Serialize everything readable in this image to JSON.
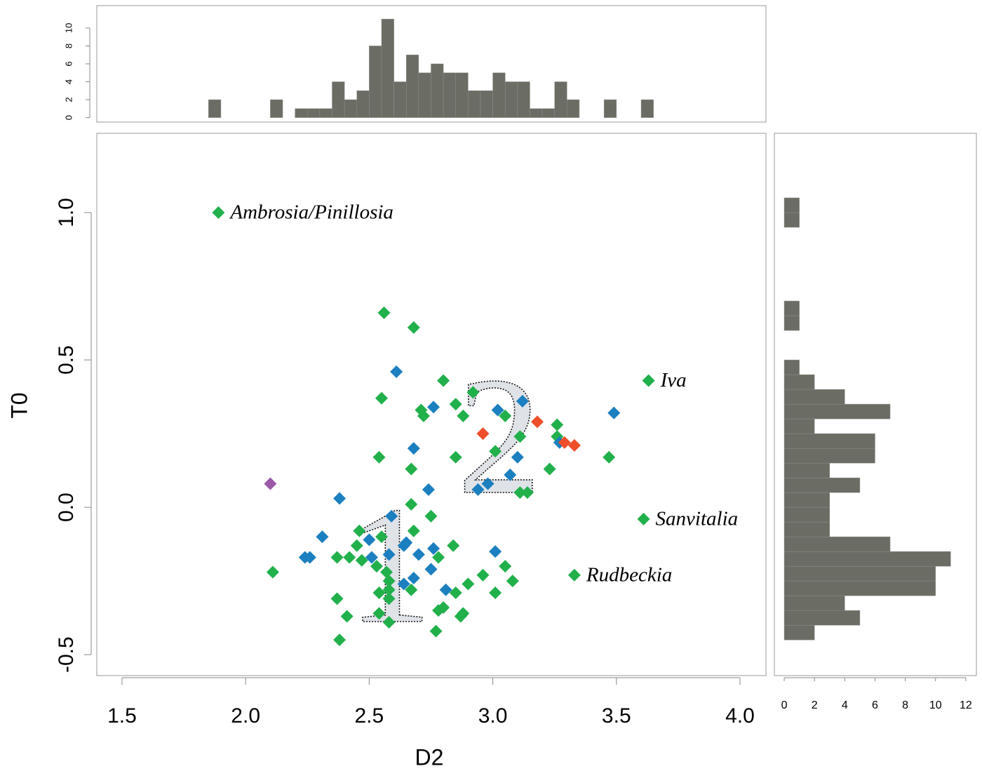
{
  "chart_data": [
    {
      "type": "scatter",
      "x_label": "D2",
      "y_label": "T0",
      "xlim": [
        1.398,
        4.105
      ],
      "ylim": [
        -0.571,
        1.269
      ],
      "xticks": [
        1.5,
        {
          "value": 2,
          "label": "2.0"
        },
        2.5,
        {
          "value": 3,
          "label": "3.0"
        },
        3.5,
        {
          "value": 4,
          "label": "4.0"
        }
      ],
      "yticks": [
        -0.5,
        {
          "value": 0,
          "label": "0.0"
        },
        0.5,
        {
          "value": 1,
          "label": "1.0"
        }
      ],
      "annotations": [
        {
          "text": "1"
        },
        {
          "text": "2"
        }
      ],
      "series": [
        {
          "color": "#22b04b",
          "x": [
            1.89,
            2.56,
            2.68,
            2.8,
            2.55,
            2.92,
            2.85,
            2.71,
            2.72,
            2.88,
            3.05,
            3.26,
            3.26,
            3.11,
            2.54,
            2.85,
            3.01,
            2.67,
            3.23,
            3.47,
            3.11,
            3.14,
            2.67,
            2.68,
            2.75,
            2.46,
            2.55,
            2.45,
            2.84,
            2.37,
            2.42,
            2.47,
            2.78,
            2.53,
            2.11,
            2.57,
            2.58,
            2.58,
            2.54,
            2.58,
            2.67,
            2.9,
            2.96,
            3.05,
            3.08,
            3.01,
            2.85,
            2.37,
            2.8,
            2.78,
            2.41,
            2.54,
            2.88,
            2.87,
            2.58,
            2.77,
            2.38,
            3.33,
            3.61,
            3.63
          ],
          "values": [
            1.0,
            0.66,
            0.61,
            0.43,
            0.37,
            0.39,
            0.35,
            0.33,
            0.31,
            0.31,
            0.31,
            0.28,
            0.24,
            0.24,
            0.17,
            0.17,
            0.19,
            0.13,
            0.13,
            0.17,
            0.05,
            0.05,
            0.01,
            -0.08,
            -0.03,
            -0.08,
            -0.1,
            -0.13,
            -0.13,
            -0.17,
            -0.17,
            -0.18,
            -0.17,
            -0.2,
            -0.22,
            -0.22,
            -0.25,
            -0.28,
            -0.29,
            -0.31,
            -0.28,
            -0.26,
            -0.23,
            -0.2,
            -0.25,
            -0.29,
            -0.29,
            -0.31,
            -0.34,
            -0.35,
            -0.37,
            -0.36,
            -0.36,
            -0.37,
            -0.39,
            -0.42,
            -0.45,
            -0.23,
            -0.04,
            0.43
          ],
          "point_labels": [
            "Ambrosia/Pinillosia",
            null,
            null,
            null,
            null,
            null,
            null,
            null,
            null,
            null,
            null,
            null,
            null,
            null,
            null,
            null,
            null,
            null,
            null,
            null,
            null,
            null,
            null,
            null,
            null,
            null,
            null,
            null,
            null,
            null,
            null,
            null,
            null,
            null,
            null,
            null,
            null,
            null,
            null,
            null,
            null,
            null,
            null,
            null,
            null,
            null,
            null,
            null,
            null,
            null,
            null,
            null,
            null,
            null,
            null,
            null,
            null,
            "Rudbeckia",
            "Sanvitalia",
            "Iva"
          ]
        },
        {
          "color": "#1b7fc0",
          "x": [
            2.61,
            2.76,
            2.68,
            3.02,
            3.12,
            3.49,
            3.27,
            3.1,
            3.07,
            2.98,
            2.94,
            2.74,
            2.38,
            2.59,
            2.31,
            2.5,
            2.65,
            2.64,
            2.7,
            2.76,
            2.24,
            2.26,
            2.51,
            2.58,
            3.01,
            2.75,
            2.68,
            2.64,
            2.81
          ],
          "values": [
            0.46,
            0.34,
            0.2,
            0.33,
            0.36,
            0.32,
            0.22,
            0.17,
            0.11,
            0.08,
            0.06,
            0.06,
            0.03,
            -0.03,
            -0.1,
            -0.11,
            -0.12,
            -0.13,
            -0.16,
            -0.14,
            -0.17,
            -0.17,
            -0.17,
            -0.16,
            -0.15,
            -0.21,
            -0.24,
            -0.26,
            -0.28
          ]
        },
        {
          "color": "#ee4e2a",
          "x": [
            2.96,
            3.18,
            3.29,
            3.33
          ],
          "values": [
            0.25,
            0.29,
            0.22,
            0.21
          ]
        },
        {
          "color": "#9b59a8",
          "x": [
            2.1
          ],
          "values": [
            0.08
          ]
        }
      ]
    },
    {
      "type": "histogram",
      "orientation": "vertical",
      "color": "#6b6d65",
      "xlim": [
        1.398,
        4.105
      ],
      "ylim": [
        -0.5,
        12.5
      ],
      "yticks": [
        0,
        2,
        4,
        6,
        8,
        10
      ],
      "bins": [
        1.85,
        1.9,
        1.95,
        2,
        2.05,
        2.1,
        2.15,
        2.2,
        2.25,
        2.3,
        2.35,
        2.4,
        2.45,
        2.5,
        2.55,
        2.6,
        2.65,
        2.7,
        2.75,
        2.8,
        2.85,
        2.9,
        2.95,
        3,
        3.05,
        3.1,
        3.15,
        3.2,
        3.25,
        3.3,
        3.35,
        3.4,
        3.45,
        3.5,
        3.55,
        3.6,
        3.65
      ],
      "counts": [
        2,
        0,
        0,
        0,
        0,
        2,
        0,
        1,
        1,
        1,
        4,
        2,
        3,
        8,
        11,
        4,
        7,
        5,
        6,
        5,
        5,
        3,
        3,
        5,
        4,
        4,
        1,
        1,
        4,
        2,
        0,
        0,
        2,
        0,
        0,
        2
      ]
    },
    {
      "type": "histogram",
      "orientation": "horizontal",
      "color": "#6b6d65",
      "ylim": [
        -0.571,
        1.269
      ],
      "xlim": [
        -0.65,
        12.7
      ],
      "xticks": [
        0,
        2,
        4,
        6,
        8,
        10,
        12
      ],
      "bins": [
        -0.45,
        -0.4,
        -0.35,
        -0.3,
        -0.25,
        -0.2,
        -0.15,
        -0.1,
        -0.05,
        0,
        0.05,
        0.1,
        0.15,
        0.2,
        0.25,
        0.3,
        0.35,
        0.4,
        0.45,
        0.5,
        0.55,
        0.6,
        0.65,
        0.7,
        0.75,
        0.8,
        0.85,
        0.9,
        0.95,
        1,
        1.05
      ],
      "counts": [
        2,
        5,
        4,
        10,
        10,
        11,
        7,
        3,
        3,
        3,
        5,
        3,
        6,
        6,
        2,
        7,
        4,
        2,
        1,
        0,
        0,
        1,
        1,
        0,
        0,
        0,
        0,
        0,
        1,
        1
      ]
    }
  ]
}
